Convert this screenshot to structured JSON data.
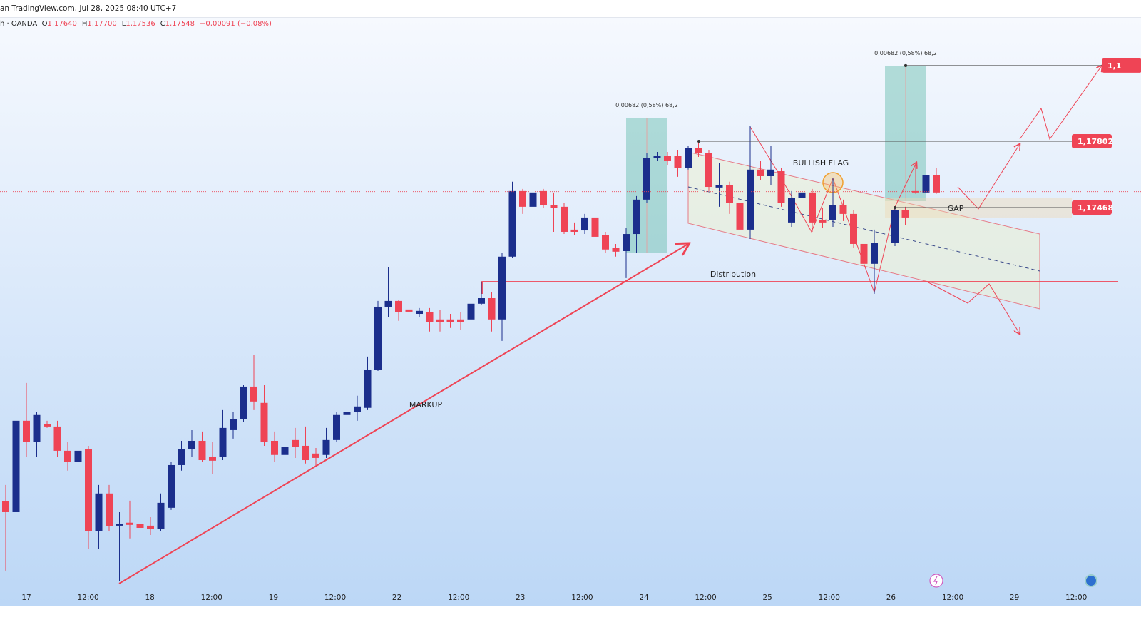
{
  "chart_data": {
    "type": "candlestick",
    "header": "an TradingView.com, Jul 28, 2025 08:40 UTC+7",
    "symbol": "h · OANDA",
    "legend_values": [
      {
        "prefix": "O",
        "value": 1.1764,
        "label": "1,17640"
      },
      {
        "prefix": "H",
        "value": 1.177,
        "label": "1,17700"
      },
      {
        "prefix": "L",
        "value": 1.17536,
        "label": "1,17536"
      },
      {
        "prefix": "C",
        "value": 1.17548,
        "label": "1,17548"
      }
    ],
    "change": "−0,00091 (−0,08%)",
    "up_color": "#1b2e8c",
    "down_color": "#ef4455",
    "ylim": [
      1.15461,
      1.18423
    ],
    "x_axis_labels": [
      "17",
      "12:00",
      "18",
      "12:00",
      "19",
      "12:00",
      "22",
      "12:00",
      "23",
      "12:00",
      "24",
      "12:00",
      "25",
      "12:00",
      "26",
      "12:00",
      "29",
      "12:00"
    ],
    "candles": [
      [
        1.15989,
        1.16072,
        1.15641,
        1.15935
      ],
      [
        1.15935,
        1.17213,
        1.15928,
        1.16395
      ],
      [
        1.16395,
        1.16585,
        1.16215,
        1.16287
      ],
      [
        1.16287,
        1.16438,
        1.16215,
        1.16424
      ],
      [
        1.16377,
        1.16395,
        1.16359,
        1.16366
      ],
      [
        1.16366,
        1.16395,
        1.16215,
        1.16244
      ],
      [
        1.16244,
        1.16287,
        1.16144,
        1.16187
      ],
      [
        1.16187,
        1.16258,
        1.16162,
        1.16244
      ],
      [
        1.16251,
        1.16269,
        1.15749,
        1.15838
      ],
      [
        1.15838,
        1.16072,
        1.15749,
        1.16029
      ],
      [
        1.16029,
        1.16072,
        1.15838,
        1.15864
      ],
      [
        1.15867,
        1.15935,
        1.15587,
        1.15874
      ],
      [
        1.15882,
        1.15993,
        1.15803,
        1.15871
      ],
      [
        1.15874,
        1.16029,
        1.15828,
        1.15856
      ],
      [
        1.15867,
        1.1591,
        1.1582,
        1.15849
      ],
      [
        1.15849,
        1.16029,
        1.15838,
        1.15982
      ],
      [
        1.15957,
        1.16187,
        1.15946,
        1.16172
      ],
      [
        1.16172,
        1.16294,
        1.16144,
        1.16251
      ],
      [
        1.16251,
        1.16348,
        1.16215,
        1.16294
      ],
      [
        1.16294,
        1.16341,
        1.16187,
        1.16197
      ],
      [
        1.16215,
        1.16287,
        1.16126,
        1.16194
      ],
      [
        1.16215,
        1.16449,
        1.16197,
        1.16359
      ],
      [
        1.16348,
        1.16438,
        1.16305,
        1.16402
      ],
      [
        1.16402,
        1.16574,
        1.16388,
        1.16567
      ],
      [
        1.16567,
        1.16725,
        1.16449,
        1.16492
      ],
      [
        1.16485,
        1.16574,
        1.16269,
        1.16287
      ],
      [
        1.16294,
        1.16341,
        1.16187,
        1.16223
      ],
      [
        1.16223,
        1.16316,
        1.16208,
        1.16262
      ],
      [
        1.16298,
        1.16359,
        1.16208,
        1.16262
      ],
      [
        1.16269,
        1.16366,
        1.1618,
        1.16197
      ],
      [
        1.1623,
        1.16258,
        1.16162,
        1.16208
      ],
      [
        1.16223,
        1.16359,
        1.16208,
        1.16298
      ],
      [
        1.16298,
        1.16438,
        1.16287,
        1.16424
      ],
      [
        1.16424,
        1.16503,
        1.16359,
        1.16438
      ],
      [
        1.16438,
        1.16521,
        1.16395,
        1.16467
      ],
      [
        1.1646,
        1.16718,
        1.16449,
        1.16653
      ],
      [
        1.16653,
        1.16998,
        1.16646,
        1.16969
      ],
      [
        1.16969,
        1.17167,
        1.16915,
        1.16998
      ],
      [
        1.16998,
        1.17005,
        1.16898,
        1.16941
      ],
      [
        1.16955,
        1.16969,
        1.16926,
        1.16944
      ],
      [
        1.16933,
        1.16962,
        1.16915,
        1.16948
      ],
      [
        1.16941,
        1.16962,
        1.16844,
        1.1689
      ],
      [
        1.16905,
        1.16951,
        1.16844,
        1.1689
      ],
      [
        1.16905,
        1.16933,
        1.16862,
        1.1689
      ],
      [
        1.16905,
        1.16941,
        1.16854,
        1.1689
      ],
      [
        1.16905,
        1.17034,
        1.16826,
        1.16984
      ],
      [
        1.16984,
        1.17095,
        1.16976,
        1.17012
      ],
      [
        1.17012,
        1.17041,
        1.16844,
        1.16905
      ],
      [
        1.16905,
        1.17239,
        1.16797,
        1.17221
      ],
      [
        1.17221,
        1.17598,
        1.17213,
        1.17551
      ],
      [
        1.17551,
        1.17562,
        1.17436,
        1.17472
      ],
      [
        1.17472,
        1.17551,
        1.17436,
        1.17544
      ],
      [
        1.17551,
        1.17562,
        1.17465,
        1.17479
      ],
      [
        1.17479,
        1.17544,
        1.17346,
        1.17465
      ],
      [
        1.17472,
        1.1749,
        1.17335,
        1.17346
      ],
      [
        1.17357,
        1.17393,
        1.17328,
        1.17346
      ],
      [
        1.17353,
        1.17436,
        1.17335,
        1.17418
      ],
      [
        1.17418,
        1.17526,
        1.17292,
        1.17321
      ],
      [
        1.17328,
        1.17346,
        1.17239,
        1.17257
      ],
      [
        1.17264,
        1.17285,
        1.17221,
        1.17246
      ],
      [
        1.17249,
        1.17364,
        1.17113,
        1.17335
      ],
      [
        1.17335,
        1.17526,
        1.17239,
        1.17508
      ],
      [
        1.17508,
        1.17741,
        1.1749,
        1.17716
      ],
      [
        1.17716,
        1.17748,
        1.17705,
        1.1773
      ],
      [
        1.1773,
        1.17748,
        1.1768,
        1.17705
      ],
      [
        1.1773,
        1.17759,
        1.17623,
        1.17669
      ],
      [
        1.17669,
        1.17777,
        1.17659,
        1.17766
      ],
      [
        1.17766,
        1.17802,
        1.17723,
        1.17741
      ],
      [
        1.17741,
        1.17759,
        1.17551,
        1.17572
      ],
      [
        1.17569,
        1.17694,
        1.17472,
        1.1758
      ],
      [
        1.1758,
        1.17598,
        1.17436,
        1.1749
      ],
      [
        1.1749,
        1.17515,
        1.17328,
        1.17357
      ],
      [
        1.17357,
        1.17881,
        1.1731,
        1.17659
      ],
      [
        1.17659,
        1.17705,
        1.17608,
        1.17626
      ],
      [
        1.17626,
        1.17777,
        1.1758,
        1.17659
      ],
      [
        1.17651,
        1.17669,
        1.17472,
        1.1749
      ],
      [
        1.17393,
        1.17551,
        1.17371,
        1.17515
      ],
      [
        1.17515,
        1.17587,
        1.17472,
        1.17544
      ],
      [
        1.17544,
        1.17562,
        1.17346,
        1.17393
      ],
      [
        1.17407,
        1.17465,
        1.17364,
        1.17393
      ],
      [
        1.17407,
        1.17616,
        1.17371,
        1.17479
      ],
      [
        1.17479,
        1.17508,
        1.174,
        1.17436
      ],
      [
        1.17436,
        1.17454,
        1.17264,
        1.17285
      ],
      [
        1.17285,
        1.173,
        1.17167,
        1.17185
      ],
      [
        1.17185,
        1.17357,
        1.17034,
        1.17292
      ],
      [
        1.17292,
        1.17472,
        1.17274,
        1.17454
      ],
      [
        1.17454,
        1.17472,
        1.17382,
        1.17418
      ],
      [
        1.17551,
        1.17694,
        1.17537,
        1.17544
      ],
      [
        1.17544,
        1.17694,
        1.17537,
        1.17633
      ],
      [
        1.17633,
        1.17669,
        1.17537,
        1.17544
      ]
    ],
    "price_labels": [
      {
        "value": 1.18183,
        "label": "1,1"
      },
      {
        "value": 1.17802,
        "label": "1,17802"
      },
      {
        "value": 1.17468,
        "label": "1,17468"
      }
    ],
    "annotations": [
      "0,00682 (0,58%) 68,2",
      "0,00682 (0,58%) 68,2",
      "BULLISH FLAG",
      "GAP",
      "Distribution",
      "MARKUP"
    ]
  }
}
